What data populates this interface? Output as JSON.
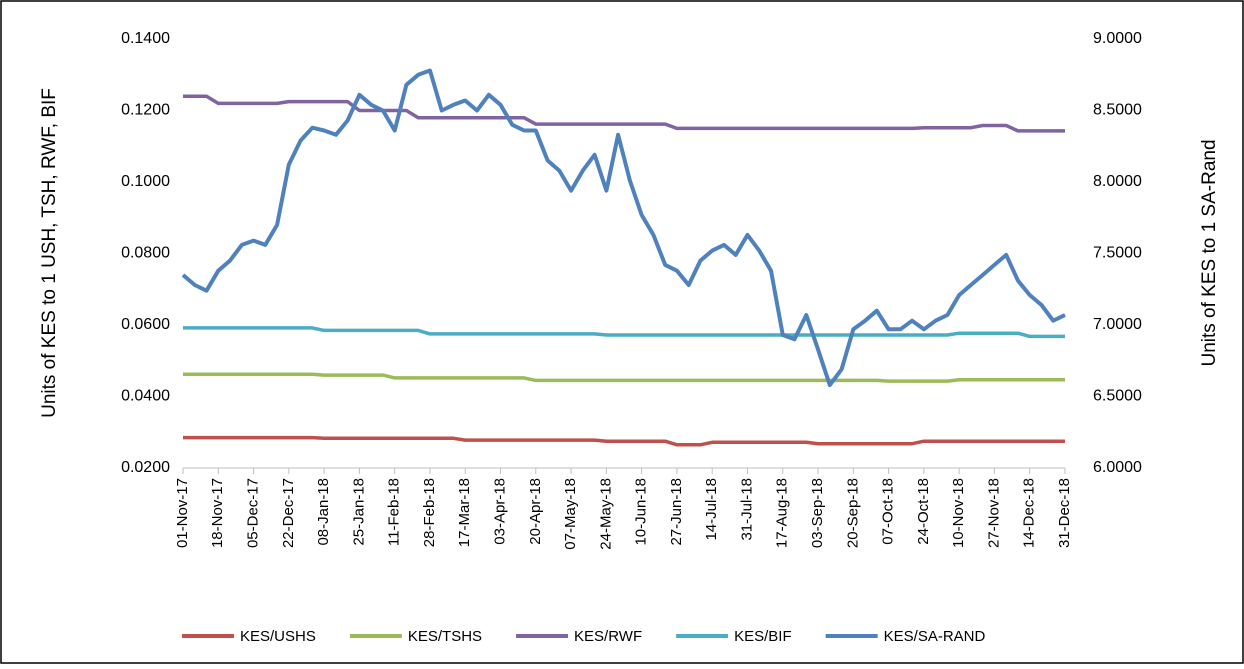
{
  "chart_data": {
    "type": "line",
    "y_label": "Units of KES to 1 USH, TSH, RWF, BIF",
    "y2_label": "Units of KES to 1 SA-Rand",
    "categories": [
      "01-Nov-17",
      null,
      null,
      "18-Nov-17",
      null,
      null,
      "05-Dec-17",
      null,
      null,
      "22-Dec-17",
      null,
      null,
      "08-Jan-18",
      null,
      null,
      "25-Jan-18",
      null,
      null,
      "11-Feb-18",
      null,
      null,
      "28-Feb-18",
      null,
      null,
      "17-Mar-18",
      null,
      null,
      "03-Apr-18",
      null,
      null,
      "20-Apr-18",
      null,
      null,
      "07-May-18",
      null,
      null,
      "24-May-18",
      null,
      null,
      "10-Jun-18",
      null,
      null,
      "27-Jun-18",
      null,
      null,
      "14-Jul-18",
      null,
      null,
      "31-Jul-18",
      null,
      null,
      "17-Aug-18",
      null,
      null,
      "03-Sep-18",
      null,
      null,
      "20-Sep-18",
      null,
      null,
      "07-Oct-18",
      null,
      null,
      "24-Oct-18",
      null,
      null,
      "10-Nov-18",
      null,
      null,
      "27-Nov-18",
      null,
      null,
      "14-Dec-18",
      null,
      null,
      "31-Dec-18"
    ],
    "ylim": [
      0.02,
      0.14
    ],
    "yticks": [
      {
        "value": 0.02,
        "label": "0.0200"
      },
      {
        "value": 0.04,
        "label": "0.0400"
      },
      {
        "value": 0.06,
        "label": "0.0600"
      },
      {
        "value": 0.08,
        "label": "0.0800"
      },
      {
        "value": 0.1,
        "label": "0.1000"
      },
      {
        "value": 0.12,
        "label": "0.1200"
      },
      {
        "value": 0.14,
        "label": "0.1400"
      }
    ],
    "y2lim": [
      6,
      9
    ],
    "y2ticks": [
      {
        "value": 6,
        "label": "6.0000"
      },
      {
        "value": 6.5,
        "label": "6.5000"
      },
      {
        "value": 7,
        "label": "7.0000"
      },
      {
        "value": 7.5,
        "label": "7.5000"
      },
      {
        "value": 8,
        "label": "8.0000"
      },
      {
        "value": 8.5,
        "label": "8.5000"
      },
      {
        "value": 9,
        "label": "9.0000"
      }
    ],
    "legend": "bottom",
    "series": [
      {
        "name": "KES/USHS",
        "color": "#c0504d",
        "values": [
          0.0285,
          0.0285,
          0.0285,
          0.0285,
          0.0285,
          0.0285,
          0.0285,
          0.0285,
          0.0285,
          0.0285,
          0.0285,
          0.0285,
          0.0283,
          0.0283,
          0.0283,
          0.0283,
          0.0283,
          0.0283,
          0.0283,
          0.0283,
          0.0283,
          0.0283,
          0.0283,
          0.0283,
          0.0278,
          0.0278,
          0.0278,
          0.0278,
          0.0278,
          0.0278,
          0.0278,
          0.0278,
          0.0278,
          0.0278,
          0.0278,
          0.0278,
          0.0275,
          0.0275,
          0.0275,
          0.0275,
          0.0275,
          0.0275,
          0.0265,
          0.0265,
          0.0265,
          0.0272,
          0.0272,
          0.0272,
          0.0272,
          0.0272,
          0.0272,
          0.0272,
          0.0272,
          0.0272,
          0.0268,
          0.0268,
          0.0268,
          0.0268,
          0.0268,
          0.0268,
          0.0268,
          0.0268,
          0.0268,
          0.0275,
          0.0275,
          0.0275,
          0.0275,
          0.0275,
          0.0275,
          0.0275,
          0.0275,
          0.0275,
          0.0275,
          0.0275,
          0.0275,
          0.0275
        ]
      },
      {
        "name": "KES/TSHS",
        "color": "#9bbb59",
        "values": [
          0.0462,
          0.0462,
          0.0462,
          0.0462,
          0.0462,
          0.0462,
          0.0462,
          0.0462,
          0.0462,
          0.0462,
          0.0462,
          0.0462,
          0.046,
          0.046,
          0.046,
          0.046,
          0.046,
          0.046,
          0.0452,
          0.0452,
          0.0452,
          0.0452,
          0.0452,
          0.0452,
          0.0452,
          0.0452,
          0.0452,
          0.0452,
          0.0452,
          0.0452,
          0.0445,
          0.0445,
          0.0445,
          0.0445,
          0.0445,
          0.0445,
          0.0445,
          0.0445,
          0.0445,
          0.0445,
          0.0445,
          0.0445,
          0.0445,
          0.0445,
          0.0445,
          0.0445,
          0.0445,
          0.0445,
          0.0445,
          0.0445,
          0.0445,
          0.0445,
          0.0445,
          0.0445,
          0.0445,
          0.0445,
          0.0445,
          0.0445,
          0.0445,
          0.0445,
          0.0443,
          0.0443,
          0.0443,
          0.0443,
          0.0443,
          0.0443,
          0.0447,
          0.0447,
          0.0447,
          0.0447,
          0.0447,
          0.0447,
          0.0447,
          0.0447,
          0.0447,
          0.0447
        ]
      },
      {
        "name": "KES/RWF",
        "color": "#8064a2",
        "values": [
          0.124,
          0.124,
          0.124,
          0.122,
          0.122,
          0.122,
          0.122,
          0.122,
          0.122,
          0.1225,
          0.1225,
          0.1225,
          0.1225,
          0.1225,
          0.1225,
          0.12,
          0.12,
          0.12,
          0.12,
          0.12,
          0.118,
          0.118,
          0.118,
          0.118,
          0.118,
          0.118,
          0.118,
          0.118,
          0.118,
          0.118,
          0.1162,
          0.1162,
          0.1162,
          0.1162,
          0.1162,
          0.1162,
          0.1162,
          0.1162,
          0.1162,
          0.1162,
          0.1162,
          0.1162,
          0.115,
          0.115,
          0.115,
          0.115,
          0.115,
          0.115,
          0.115,
          0.115,
          0.115,
          0.115,
          0.115,
          0.115,
          0.115,
          0.115,
          0.115,
          0.115,
          0.115,
          0.115,
          0.115,
          0.115,
          0.115,
          0.1152,
          0.1152,
          0.1152,
          0.1152,
          0.1152,
          0.1158,
          0.1158,
          0.1158,
          0.1143,
          0.1143,
          0.1143,
          0.1143,
          0.1143
        ]
      },
      {
        "name": "KES/BIF",
        "color": "#4bacc6",
        "values": [
          0.0592,
          0.0592,
          0.0592,
          0.0592,
          0.0592,
          0.0592,
          0.0592,
          0.0592,
          0.0592,
          0.0592,
          0.0592,
          0.0592,
          0.0585,
          0.0585,
          0.0585,
          0.0585,
          0.0585,
          0.0585,
          0.0585,
          0.0585,
          0.0585,
          0.0575,
          0.0575,
          0.0575,
          0.0575,
          0.0575,
          0.0575,
          0.0575,
          0.0575,
          0.0575,
          0.0575,
          0.0575,
          0.0575,
          0.0575,
          0.0575,
          0.0575,
          0.0572,
          0.0572,
          0.0572,
          0.0572,
          0.0572,
          0.0572,
          0.0572,
          0.0572,
          0.0572,
          0.0572,
          0.0572,
          0.0572,
          0.0572,
          0.0572,
          0.0572,
          0.0572,
          0.0572,
          0.0572,
          0.0572,
          0.0572,
          0.0572,
          0.0572,
          0.0572,
          0.0572,
          0.0572,
          0.0572,
          0.0572,
          0.0572,
          0.0572,
          0.0572,
          0.0577,
          0.0577,
          0.0577,
          0.0577,
          0.0577,
          0.0577,
          0.0568,
          0.0568,
          0.0568,
          0.0568
        ]
      },
      {
        "name": "KES/SA-RAND",
        "color": "#4f81bd",
        "axis": "y2",
        "values": [
          7.35,
          7.28,
          7.24,
          7.38,
          7.45,
          7.56,
          7.59,
          7.56,
          7.7,
          8.12,
          8.29,
          8.38,
          8.36,
          8.33,
          8.43,
          8.61,
          8.54,
          8.5,
          8.36,
          8.68,
          8.75,
          8.78,
          8.5,
          8.54,
          8.57,
          8.5,
          8.61,
          8.54,
          8.4,
          8.36,
          8.36,
          8.15,
          8.08,
          7.94,
          8.08,
          8.19,
          7.94,
          8.33,
          8.01,
          7.77,
          7.63,
          7.42,
          7.38,
          7.28,
          7.45,
          7.52,
          7.56,
          7.49,
          7.63,
          7.52,
          7.38,
          6.93,
          6.9,
          7.07,
          6.83,
          6.58,
          6.69,
          6.97,
          7.03,
          7.1,
          6.97,
          6.97,
          7.03,
          6.97,
          7.03,
          7.07,
          7.21,
          7.28,
          7.35,
          7.42,
          7.49,
          7.31,
          7.21,
          7.14,
          7.03,
          7.07
        ]
      }
    ]
  }
}
